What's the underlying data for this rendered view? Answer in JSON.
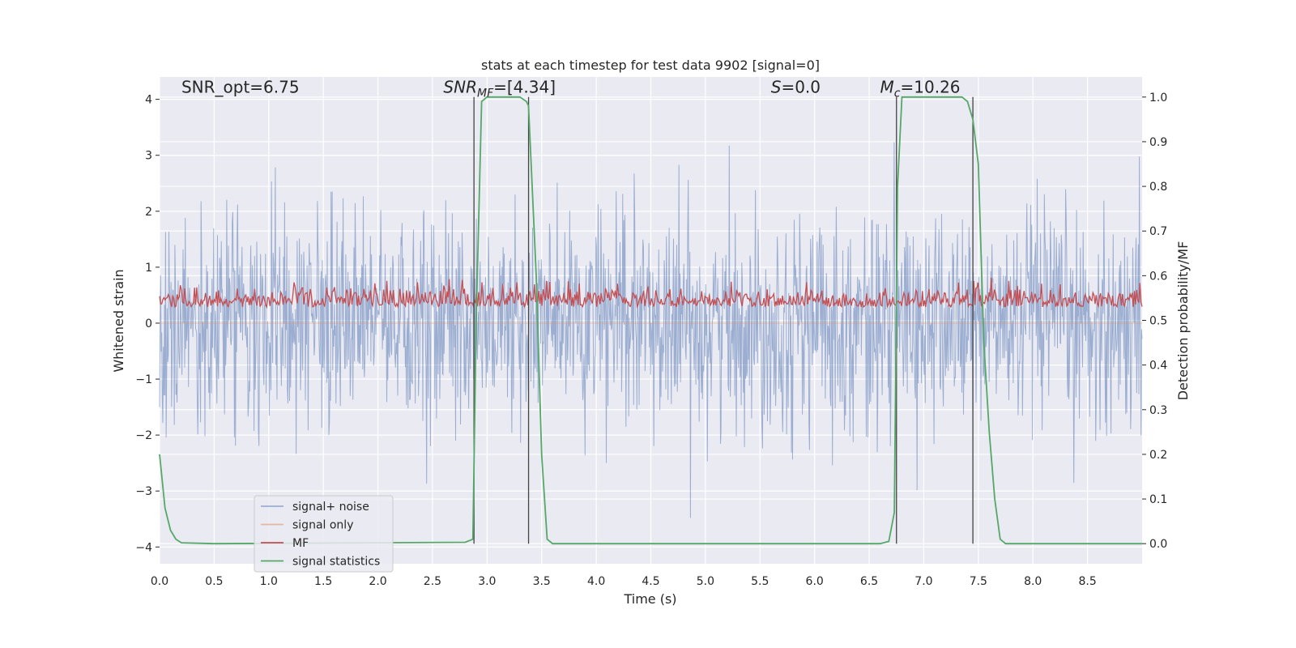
{
  "chart_data": {
    "type": "line",
    "title": "stats at each timestep for test data 9902 [signal=0]",
    "xlabel": "Time (s)",
    "ylabel": "Whitened strain",
    "ylabel_right": "Detection probability/MF",
    "xlim": [
      0.0,
      9.0
    ],
    "ylim_left": [
      -4.3,
      4.4
    ],
    "ylim_right": [
      -0.045,
      1.045
    ],
    "x_ticks": [
      "0.0",
      "0.5",
      "1.0",
      "1.5",
      "2.0",
      "2.5",
      "3.0",
      "3.5",
      "4.0",
      "4.5",
      "5.0",
      "5.5",
      "6.0",
      "6.5",
      "7.0",
      "7.5",
      "8.0",
      "8.5"
    ],
    "x_tick_values": [
      0.0,
      0.5,
      1.0,
      1.5,
      2.0,
      2.5,
      3.0,
      3.5,
      4.0,
      4.5,
      5.0,
      5.5,
      6.0,
      6.5,
      7.0,
      7.5,
      8.0,
      8.5
    ],
    "y_ticks_left": [
      "4",
      "3",
      "2",
      "1",
      "0",
      "−1",
      "−2",
      "−3",
      "−4"
    ],
    "y_tick_values_left": [
      4,
      3,
      2,
      1,
      0,
      -1,
      -2,
      -3,
      -4
    ],
    "y_ticks_right": [
      "1.0",
      "0.9",
      "0.8",
      "0.7",
      "0.6",
      "0.5",
      "0.4",
      "0.3",
      "0.2",
      "0.1",
      "0.0"
    ],
    "y_tick_values_right": [
      1.0,
      0.9,
      0.8,
      0.7,
      0.6,
      0.5,
      0.4,
      0.3,
      0.2,
      0.1,
      0.0
    ],
    "annotations": [
      {
        "text": "SNR_opt=6.75",
        "x": 0.2,
        "y": 1.01
      },
      {
        "text_main": "SNR",
        "text_sub": "MF",
        "text_rest": "=[4.34]",
        "x": 2.6,
        "y": 1.01
      },
      {
        "text_main": "S",
        "text_sub": "",
        "text_rest": "=0.0",
        "x": 5.6,
        "y": 1.01
      },
      {
        "text_main": "M",
        "text_sub": "c",
        "text_rest": "=10.26",
        "x": 6.6,
        "y": 1.01
      }
    ],
    "vlines": [
      2.88,
      3.38,
      6.75,
      7.45
    ],
    "series": [
      {
        "name": "signal+ noise",
        "color": "#4c72b0",
        "axis": "left",
        "kind": "noise",
        "amplitude_typical": 1.3,
        "amplitude_max": 3.8
      },
      {
        "name": "signal only",
        "color": "#dd8452",
        "axis": "left",
        "kind": "flat",
        "values_summary": "no signal (zero)"
      },
      {
        "name": "MF",
        "color": "#c44e52",
        "axis": "right",
        "kind": "mf_band",
        "baseline": 0.53,
        "peak": 0.6
      },
      {
        "name": "signal statistics",
        "color": "#55a868",
        "axis": "right",
        "x": [
          0.0,
          0.05,
          0.1,
          0.15,
          0.2,
          0.5,
          2.8,
          2.87,
          2.9,
          2.95,
          3.0,
          3.3,
          3.36,
          3.38,
          3.45,
          3.5,
          3.55,
          3.6,
          6.6,
          6.68,
          6.73,
          6.76,
          6.8,
          7.35,
          7.4,
          7.45,
          7.5,
          7.55,
          7.6,
          7.65,
          7.7,
          7.75,
          9.0
        ],
        "y": [
          0.2,
          0.08,
          0.03,
          0.01,
          0.002,
          0.0,
          0.003,
          0.01,
          0.5,
          0.99,
          1.0,
          1.0,
          0.99,
          0.98,
          0.6,
          0.2,
          0.01,
          0.0,
          0.0,
          0.005,
          0.07,
          0.8,
          1.0,
          1.0,
          0.99,
          0.95,
          0.85,
          0.45,
          0.25,
          0.1,
          0.01,
          0.0,
          0.0
        ]
      }
    ],
    "legend": {
      "placement": "lower-left",
      "entries": [
        "signal+ noise",
        "signal only",
        "MF",
        "signal statistics"
      ]
    },
    "grid": true
  }
}
